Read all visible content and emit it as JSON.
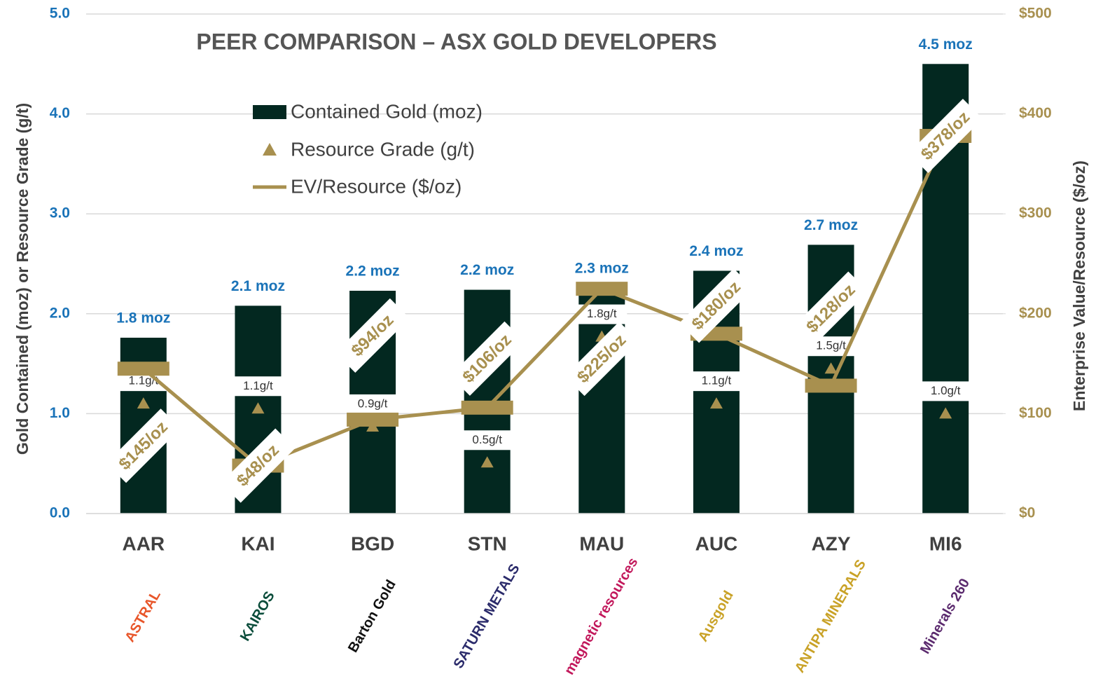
{
  "chart_data": {
    "type": "combo",
    "title": "PEER COMPARISON – ASX GOLD DEVELOPERS",
    "y_label": "Gold Contained (moz) or Resource Grade (g/t)",
    "y2_label": "Enterprise Value/Resource ($/oz)",
    "categories": [
      "AAR",
      "KAI",
      "BGD",
      "STN",
      "MAU",
      "AUC",
      "AZY",
      "MI6"
    ],
    "logos": [
      "ASTRAL",
      "KAIROS",
      "Barton Gold",
      "SATURN METALS",
      "magnetic resources",
      "Ausgold",
      "ANTIPA MINERALS",
      "Minerals 260"
    ],
    "series": [
      {
        "name": "Contained Gold (moz)",
        "kind": "bar",
        "color": "#032820",
        "values": [
          1.76,
          2.08,
          2.23,
          2.24,
          2.26,
          2.43,
          2.69,
          4.5
        ],
        "value_labels": [
          "1.8 moz",
          "2.1 moz",
          "2.2 moz",
          "2.2 moz",
          "2.3 moz",
          "2.4 moz",
          "2.7 moz",
          "4.5 moz"
        ]
      },
      {
        "name": "Resource Grade (g/t)",
        "kind": "marker",
        "color": "#a8904f",
        "values": [
          1.1,
          1.05,
          0.87,
          0.51,
          1.77,
          1.1,
          1.45,
          1.0
        ],
        "value_labels": [
          "1.1g/t",
          "1.1g/t",
          "0.9g/t",
          "0.5g/t",
          "1.8g/t",
          "1.1g/t",
          "1.5g/t",
          "1.0g/t"
        ]
      },
      {
        "name": "EV/Resource ($/oz)",
        "kind": "line",
        "axis": "y2",
        "color": "#a8904f",
        "values": [
          145,
          48,
          94,
          106,
          225,
          180,
          128,
          378
        ],
        "value_labels": [
          "$145/oz",
          "$48/oz",
          "$94/oz",
          "$106/oz",
          "$225/oz",
          "$180/oz",
          "$128/oz",
          "$378/oz"
        ]
      }
    ],
    "ylim": [
      0,
      5
    ],
    "yticks": [
      {
        "value": 0,
        "label": "0.0"
      },
      {
        "value": 1,
        "label": "1.0"
      },
      {
        "value": 2,
        "label": "2.0"
      },
      {
        "value": 3,
        "label": "3.0"
      },
      {
        "value": 4,
        "label": "4.0"
      },
      {
        "value": 5,
        "label": "5.0"
      }
    ],
    "y2lim": [
      0,
      500
    ],
    "y2ticks": [
      {
        "value": 0,
        "label": "$0"
      },
      {
        "value": 100,
        "label": "$100"
      },
      {
        "value": 200,
        "label": "$200"
      },
      {
        "value": 300,
        "label": "$300"
      },
      {
        "value": 400,
        "label": "$400"
      },
      {
        "value": 500,
        "label": "$500"
      }
    ],
    "grid": true
  }
}
